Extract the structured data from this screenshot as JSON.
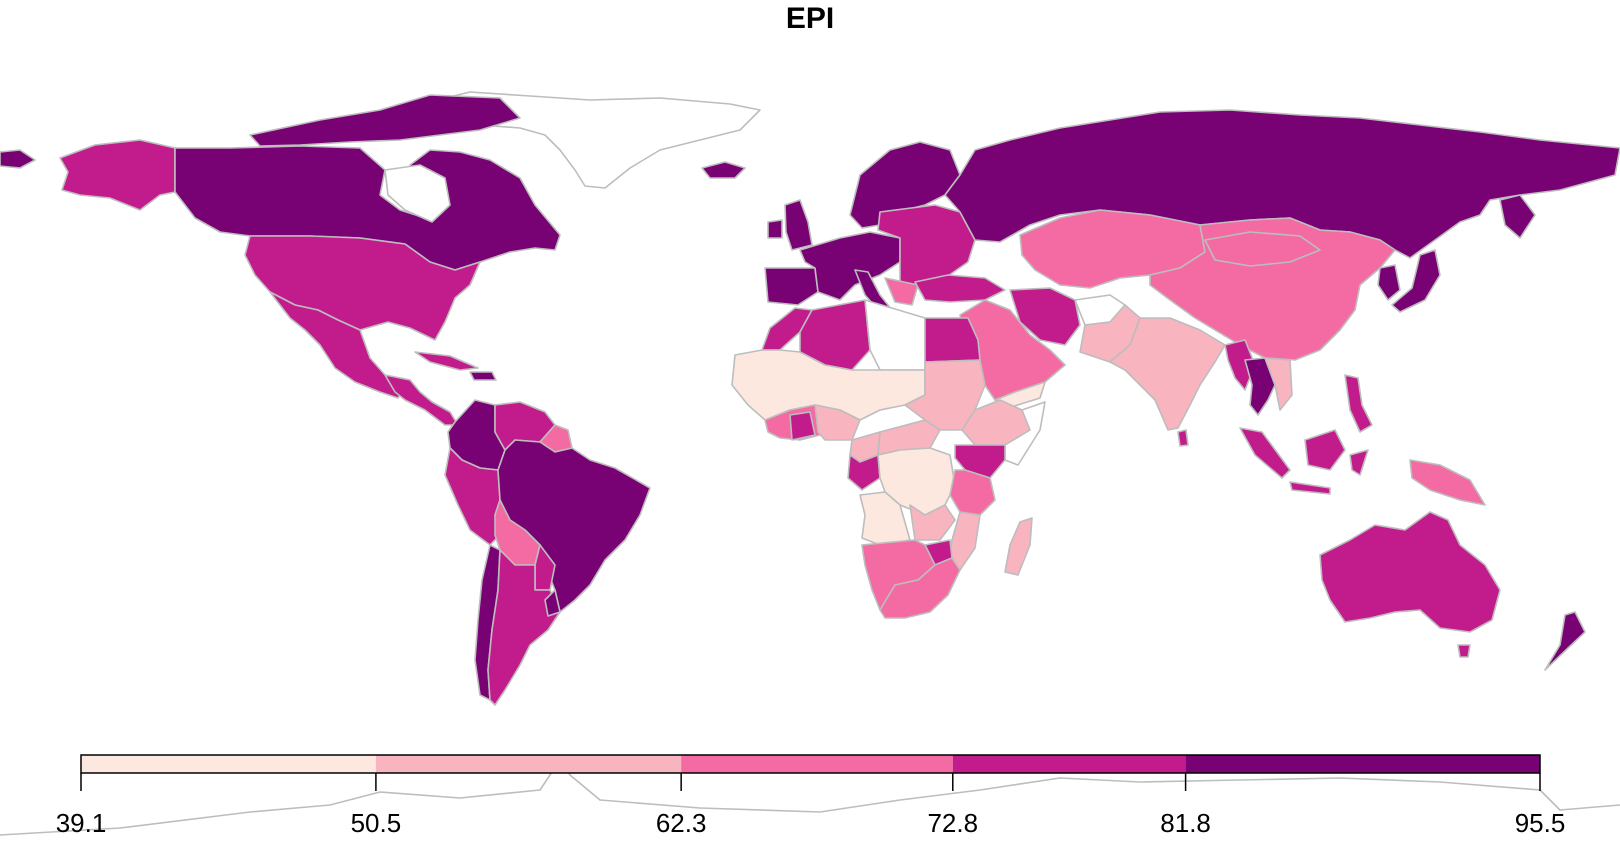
{
  "map": {
    "title": "EPI",
    "projection": "equirectangular",
    "legend": {
      "breaks": [
        "39.1",
        "50.5",
        "62.3",
        "72.8",
        "81.8",
        "95.5"
      ],
      "classes": [
        {
          "min": 39.1,
          "max": 50.5,
          "color": "#fde8df"
        },
        {
          "min": 50.5,
          "max": 62.3,
          "color": "#f8b4bf"
        },
        {
          "min": 62.3,
          "max": 72.8,
          "color": "#f36ba2"
        },
        {
          "min": 72.8,
          "max": 81.8,
          "color": "#c21b8c"
        },
        {
          "min": 81.8,
          "max": 95.5,
          "color": "#780273"
        }
      ]
    },
    "border_color": "#bdbdbd",
    "regions": [
      {
        "name": "Canada",
        "class": 4
      },
      {
        "name": "United States",
        "class": 3
      },
      {
        "name": "Alaska",
        "class": 3
      },
      {
        "name": "Mexico",
        "class": 3
      },
      {
        "name": "Central America",
        "class": 3
      },
      {
        "name": "Colombia",
        "class": 4
      },
      {
        "name": "Venezuela",
        "class": 3
      },
      {
        "name": "Peru",
        "class": 3
      },
      {
        "name": "Brazil",
        "class": 4
      },
      {
        "name": "Bolivia",
        "class": 2
      },
      {
        "name": "Chile",
        "class": 4
      },
      {
        "name": "Argentina",
        "class": 3
      },
      {
        "name": "Greenland",
        "class": null
      },
      {
        "name": "Iceland",
        "class": 4
      },
      {
        "name": "United Kingdom",
        "class": 4
      },
      {
        "name": "Western Europe",
        "class": 4
      },
      {
        "name": "Eastern Europe",
        "class": 3
      },
      {
        "name": "Scandinavia",
        "class": 4
      },
      {
        "name": "Russia",
        "class": 4
      },
      {
        "name": "Kazakhstan",
        "class": 2
      },
      {
        "name": "China",
        "class": 2
      },
      {
        "name": "Mongolia",
        "class": 2
      },
      {
        "name": "Japan",
        "class": 4
      },
      {
        "name": "Korea",
        "class": 4
      },
      {
        "name": "Turkey",
        "class": 3
      },
      {
        "name": "Iran",
        "class": 3
      },
      {
        "name": "Saudi Arabia",
        "class": 2
      },
      {
        "name": "India",
        "class": 1
      },
      {
        "name": "Pakistan",
        "class": 1
      },
      {
        "name": "Afghanistan",
        "class": null
      },
      {
        "name": "Myanmar",
        "class": 3
      },
      {
        "name": "Thailand",
        "class": 4
      },
      {
        "name": "Indonesia",
        "class": 3
      },
      {
        "name": "Papua New Guinea",
        "class": 2
      },
      {
        "name": "Australia",
        "class": 3
      },
      {
        "name": "New Zealand",
        "class": 4
      },
      {
        "name": "Morocco",
        "class": 3
      },
      {
        "name": "Algeria",
        "class": 3
      },
      {
        "name": "Libya",
        "class": null
      },
      {
        "name": "Egypt",
        "class": 3
      },
      {
        "name": "West Sahel",
        "class": 0
      },
      {
        "name": "Sudan",
        "class": 1
      },
      {
        "name": "Ethiopia",
        "class": 1
      },
      {
        "name": "Somalia",
        "class": null
      },
      {
        "name": "Gulf of Guinea coast",
        "class": 2
      },
      {
        "name": "Nigeria",
        "class": 1
      },
      {
        "name": "Gabon / Congo",
        "class": 3
      },
      {
        "name": "DR Congo",
        "class": 0
      },
      {
        "name": "Angola",
        "class": 0
      },
      {
        "name": "Kenya",
        "class": 3
      },
      {
        "name": "Tanzania",
        "class": 2
      },
      {
        "name": "Zambia",
        "class": 1
      },
      {
        "name": "Mozambique",
        "class": 1
      },
      {
        "name": "Namibia / Botswana",
        "class": 2
      },
      {
        "name": "South Africa",
        "class": 2
      },
      {
        "name": "Madagascar",
        "class": 1
      }
    ]
  }
}
